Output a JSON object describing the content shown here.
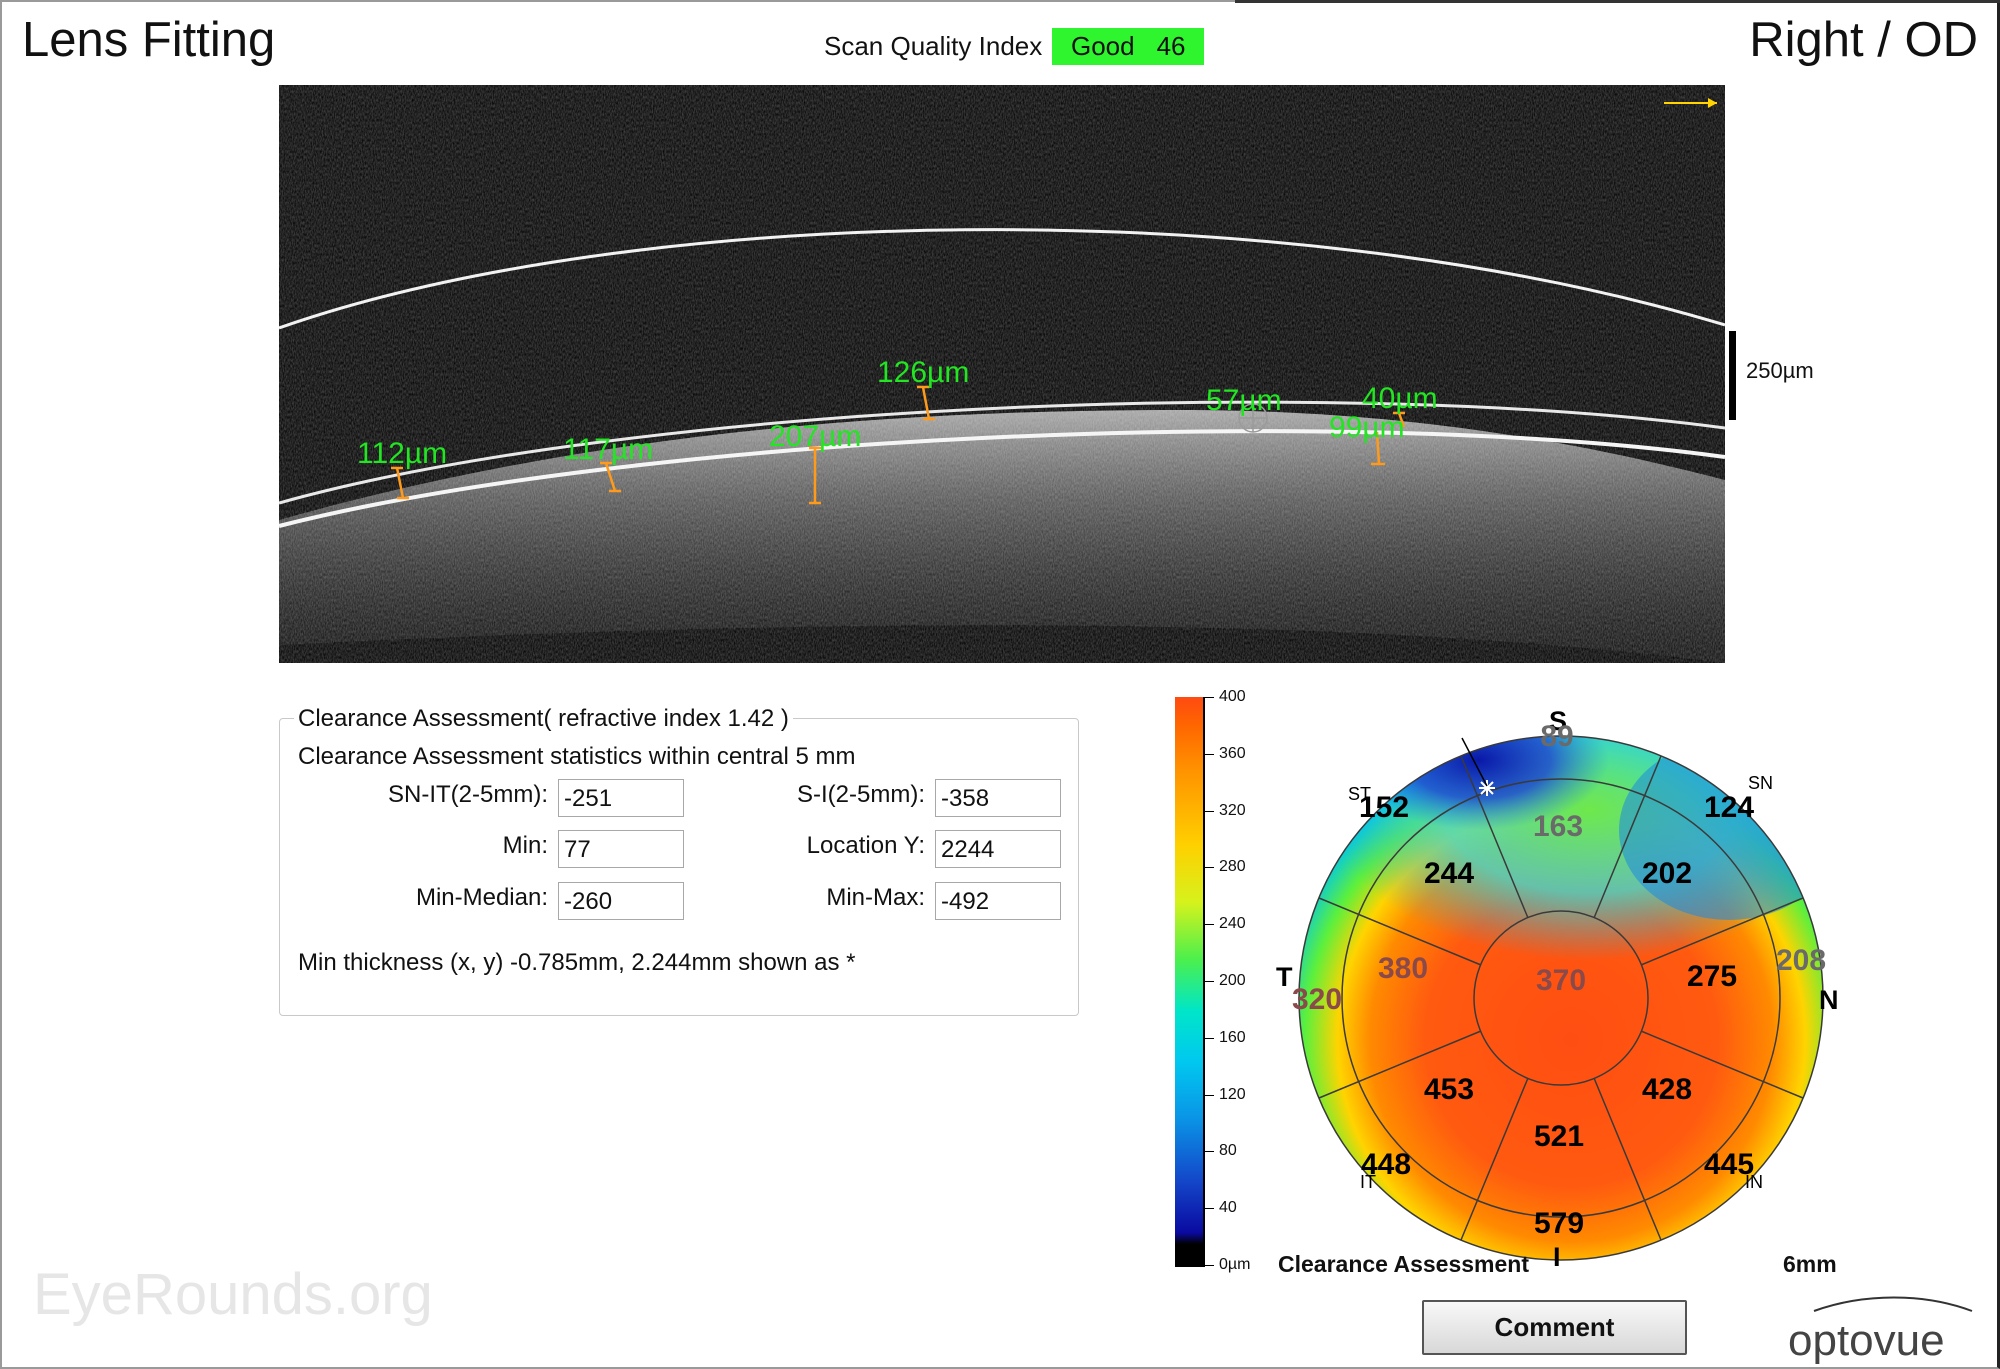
{
  "header": {
    "title": "Lens Fitting",
    "eye_side": "Right / OD",
    "scan_quality_label": "Scan Quality Index",
    "scan_quality_status": "Good",
    "scan_quality_value": "46"
  },
  "oct_scan": {
    "measurements": [
      "112µm",
      "117µm",
      "207µm",
      "126µm",
      "57µm",
      "40µm",
      "99µm"
    ],
    "scale_bar": "250µm"
  },
  "clearance_assessment": {
    "title": "Clearance Assessment( refractive index  1.42 )",
    "subtitle": "Clearance Assessment statistics within central 5 mm",
    "fields": {
      "sn_it": {
        "label": "SN-IT(2-5mm):",
        "value": "-251"
      },
      "s_i": {
        "label": "S-I(2-5mm):",
        "value": "-358"
      },
      "min": {
        "label": "Min:",
        "value": "77"
      },
      "location_y": {
        "label": "Location Y:",
        "value": "2244"
      },
      "min_median": {
        "label": "Min-Median:",
        "value": "-260"
      },
      "min_max": {
        "label": "Min-Max:",
        "value": "-492"
      }
    },
    "note": "Min thickness (x, y) -0.785mm, 2.244mm shown as *"
  },
  "colorbar": {
    "ticks": [
      "400",
      "360",
      "320",
      "280",
      "240",
      "200",
      "160",
      "120",
      "80",
      "40",
      "0µm"
    ],
    "tick_values": [
      400,
      360,
      320,
      280,
      240,
      200,
      160,
      120,
      80,
      40,
      0
    ]
  },
  "thickness_map": {
    "directions": {
      "superior": "S",
      "inferior": "I",
      "temporal": "T",
      "nasal": "N"
    },
    "sector_labels": {
      "st": "ST",
      "sn": "SN",
      "it": "IT",
      "in": "IN"
    },
    "center": "370",
    "inner": {
      "s": "163",
      "sn": "202",
      "n": "275",
      "in": "428",
      "i": "521",
      "it": "453",
      "t": "380",
      "st": "244"
    },
    "outer": {
      "s": "89",
      "sn": "124",
      "n": "208",
      "in": "445",
      "i": "579",
      "it": "448",
      "t": "320",
      "st": "152"
    },
    "caption": "Clearance Assessment",
    "scale": "6mm"
  },
  "buttons": {
    "comment": "Comment"
  },
  "watermark": "EyeRounds.org",
  "brand": {
    "logo_text": "optovue"
  }
}
